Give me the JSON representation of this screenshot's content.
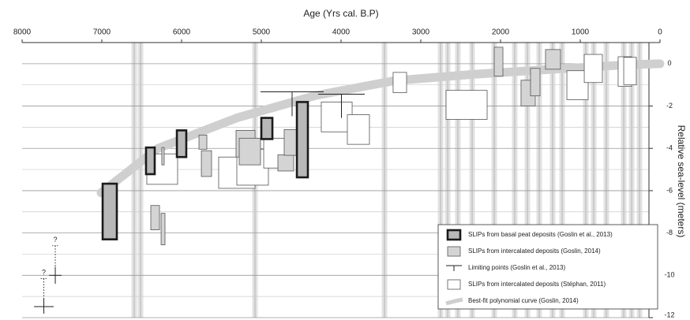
{
  "chart_data": {
    "type": "sea-level",
    "x_label": "Age (Yrs cal. B.P)",
    "y_label": "Relative sea-level (meters)",
    "xlim": [
      8000,
      0
    ],
    "xticks": [
      8000,
      7000,
      6000,
      5000,
      4000,
      3000,
      2000,
      1000,
      0
    ],
    "ylim": [
      -12,
      1
    ],
    "yticks": [
      0,
      -2,
      -4,
      -6,
      -8,
      -10,
      -12
    ],
    "minor_yticks": [
      -1,
      -3,
      -5,
      -7,
      -9,
      -11
    ],
    "grid": true,
    "shaded_bands": [
      6594,
      6515,
      5079,
      3455,
      2752,
      2663,
      2535,
      2356,
      2079,
      1822,
      1663,
      1515,
      1347,
      1228,
      931,
      832,
      673,
      455,
      356,
      257
    ],
    "series": [
      {
        "name": "Best-fit polynomial curve (Goslin, 2014)",
        "kind": "curve",
        "color": "#cfcfcf",
        "x": [
          7010,
          6297,
          5307,
          4317,
          3327,
          2337,
          1347,
          356,
          0
        ],
        "values": [
          -6.1,
          -4.0,
          -2.56,
          -1.5,
          -0.8,
          -0.5,
          -0.26,
          -0.04,
          0
        ]
      },
      {
        "name": "SLIPs from intercalated deposits (Stéphan, 2011)",
        "kind": "box",
        "color": "#ffffff",
        "boxes": [
          [
            6436,
            6050,
            -4.26,
            -5.7
          ],
          [
            5535,
            5079,
            -4.41,
            -5.89
          ],
          [
            5307,
            4911,
            -4.04,
            -5.74
          ],
          [
            4970,
            4693,
            -3.52,
            -4.93
          ],
          [
            4248,
            3861,
            -1.81,
            -3.22
          ],
          [
            3921,
            3644,
            -2.41,
            -3.81
          ],
          [
            3347,
            3178,
            -0.41,
            -1.37
          ],
          [
            2683,
            2168,
            -1.26,
            -2.63
          ],
          [
            1168,
            901,
            -0.33,
            -1.7
          ],
          [
            950,
            723,
            0.44,
            -0.89
          ],
          [
            525,
            356,
            0.33,
            -1.07
          ],
          [
            455,
            297,
            0.3,
            -1.0
          ]
        ]
      },
      {
        "name": "SLIPs from intercalated deposits (Goslin, 2014)",
        "kind": "box",
        "color": "#d4d4d4",
        "boxes": [
          [
            6900,
            6812,
            -6.0,
            -7.2
          ],
          [
            6386,
            6277,
            -6.7,
            -7.85
          ],
          [
            6257,
            6208,
            -7.07,
            -8.56
          ],
          [
            6248,
            6218,
            -3.96,
            -4.78
          ],
          [
            5782,
            5683,
            -3.37,
            -4.04
          ],
          [
            5752,
            5624,
            -4.11,
            -5.33
          ],
          [
            5317,
            5079,
            -3.15,
            -4.41
          ],
          [
            5277,
            5010,
            -3.52,
            -4.78
          ],
          [
            4792,
            4594,
            -4.3,
            -5.07
          ],
          [
            4713,
            4554,
            -3.11,
            -4.33
          ],
          [
            2079,
            1970,
            0.78,
            -0.59
          ],
          [
            1743,
            1564,
            -0.78,
            -2.0
          ],
          [
            1624,
            1505,
            -0.22,
            -1.52
          ],
          [
            1436,
            1248,
            0.67,
            -0.26
          ]
        ]
      },
      {
        "name": "SLIPs from basal peat deposits (Goslin et al., 2013)",
        "kind": "box",
        "color": "#b8b8b8",
        "boxes": [
          [
            6990,
            6812,
            -5.67,
            -8.3
          ],
          [
            6446,
            6337,
            -3.96,
            -5.22
          ],
          [
            6059,
            5941,
            -3.15,
            -4.41
          ],
          [
            5000,
            4861,
            -2.56,
            -3.56
          ],
          [
            4554,
            4416,
            -1.81,
            -5.37
          ]
        ]
      },
      {
        "name": "Limiting points (Goslin et al., 2013)",
        "kind": "limit",
        "color": "#222222",
        "points": [
          {
            "x": [
              5010,
              4218
            ],
            "y": -1.33,
            "stem": [
              -1.33,
              -2.48
            ]
          },
          {
            "x": [
              4287,
              3703
            ],
            "y": -1.44,
            "stem": [
              -1.44,
              -2.56
            ]
          },
          {
            "x": [
              7851,
              7604
            ],
            "y": -11.48,
            "stem": [
              -11.07,
              -11.81
            ],
            "dotted_to": -10.15,
            "note": "?"
          },
          {
            "x": [
              7663,
              7505
            ],
            "y": -10.0,
            "stem": [
              -9.6,
              -10.4
            ],
            "dotted_to": -8.6,
            "note": "?"
          }
        ]
      }
    ],
    "legend_order": [
      3,
      2,
      4,
      1,
      0
    ]
  }
}
